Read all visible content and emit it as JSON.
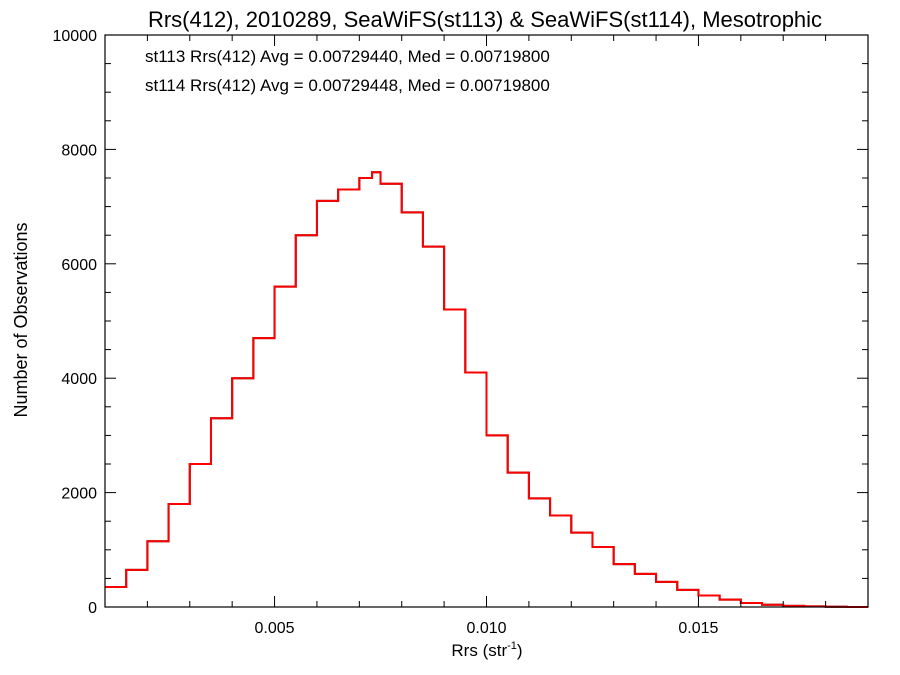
{
  "chart_data": {
    "type": "line",
    "style": "step-histogram",
    "title": "Rrs(412), 2010289, SeaWiFS(st113) & SeaWiFS(st114), Mesotrophic",
    "xlabel_main": "Rrs (str",
    "xlabel_sup": "-1",
    "xlabel_tail": ")",
    "ylabel": "Number of Observations",
    "xlim": [
      0.001,
      0.019
    ],
    "ylim": [
      0,
      10000
    ],
    "x_ticks": [
      0.005,
      0.01,
      0.015
    ],
    "x_tick_labels": [
      "0.005",
      "0.010",
      "0.015"
    ],
    "y_ticks": [
      0,
      2000,
      4000,
      6000,
      8000,
      10000
    ],
    "y_tick_labels": [
      "0",
      "2000",
      "4000",
      "6000",
      "8000",
      "10000"
    ],
    "grid": false,
    "annotations": [
      {
        "text": "st113 Rrs(412) Avg = 0.00729440, Med = 0.00719800",
        "color": "#000000"
      },
      {
        "text": "st114 Rrs(412) Avg = 0.00729448, Med = 0.00719800",
        "color": "#ff0000"
      }
    ],
    "series": [
      {
        "color": "#000000",
        "x": [
          0.001,
          0.0015,
          0.002,
          0.0025,
          0.003,
          0.0035,
          0.004,
          0.0045,
          0.005,
          0.0055,
          0.006,
          0.0065,
          0.007,
          0.0073,
          0.0075,
          0.008,
          0.0085,
          0.009,
          0.0095,
          0.01,
          0.0105,
          0.011,
          0.0115,
          0.012,
          0.0125,
          0.013,
          0.0135,
          0.014,
          0.0145,
          0.015,
          0.0155,
          0.016,
          0.0165,
          0.017,
          0.0175,
          0.018,
          0.0185,
          0.019
        ],
        "y": [
          350,
          650,
          1150,
          1800,
          2500,
          3300,
          4000,
          4700,
          5600,
          6500,
          7100,
          7300,
          7500,
          7600,
          7400,
          6900,
          6300,
          5200,
          4100,
          3000,
          2350,
          1900,
          1600,
          1300,
          1050,
          750,
          580,
          440,
          300,
          200,
          130,
          70,
          40,
          20,
          10,
          5,
          0,
          0
        ]
      },
      {
        "color": "#ff0000",
        "x": [
          0.001,
          0.0015,
          0.002,
          0.0025,
          0.003,
          0.0035,
          0.004,
          0.0045,
          0.005,
          0.0055,
          0.006,
          0.0065,
          0.007,
          0.0073,
          0.0075,
          0.008,
          0.0085,
          0.009,
          0.0095,
          0.01,
          0.0105,
          0.011,
          0.0115,
          0.012,
          0.0125,
          0.013,
          0.0135,
          0.014,
          0.0145,
          0.015,
          0.0155,
          0.016,
          0.0165,
          0.017,
          0.0175,
          0.018,
          0.0185,
          0.019
        ],
        "y": [
          350,
          650,
          1150,
          1800,
          2500,
          3300,
          4000,
          4700,
          5600,
          6500,
          7100,
          7300,
          7500,
          7600,
          7400,
          6900,
          6300,
          5200,
          4100,
          3000,
          2350,
          1900,
          1600,
          1300,
          1050,
          750,
          580,
          440,
          300,
          200,
          130,
          70,
          40,
          20,
          10,
          5,
          0,
          0
        ]
      }
    ]
  }
}
